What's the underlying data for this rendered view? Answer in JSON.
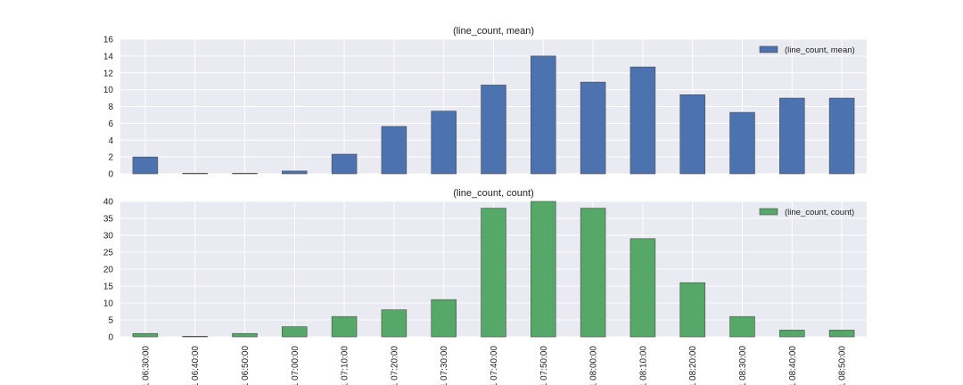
{
  "chart_data": [
    {
      "type": "bar",
      "title": "(line_count, mean)",
      "categories": [
        "1 06:30:00",
        "1 06:40:00",
        "1 06:50:00",
        "1 07:00:00",
        "1 07:10:00",
        "1 07:20:00",
        "1 07:30:00",
        "1 07:40:00",
        "1 07:50:00",
        "1 08:00:00",
        "1 08:10:00",
        "1 08:20:00",
        "1 08:30:00",
        "1 08:40:00",
        "1 08:50:00"
      ],
      "series": [
        {
          "name": "(line_count, mean)",
          "color": "#4c72b0",
          "values": [
            2.0,
            0.0,
            0.0,
            0.33,
            2.33,
            5.63,
            7.45,
            10.55,
            14.0,
            10.9,
            12.7,
            9.4,
            7.3,
            9.0,
            9.0
          ]
        }
      ],
      "ylim": [
        0,
        16
      ],
      "yticks": [
        0,
        2,
        4,
        6,
        8,
        10,
        12,
        14,
        16
      ],
      "grid": true,
      "legend_position": "top-right",
      "xlabel": "",
      "ylabel": ""
    },
    {
      "type": "bar",
      "title": "(line_count, count)",
      "categories": [
        "1 06:30:00",
        "1 06:40:00",
        "1 06:50:00",
        "1 07:00:00",
        "1 07:10:00",
        "1 07:20:00",
        "1 07:30:00",
        "1 07:40:00",
        "1 07:50:00",
        "1 08:00:00",
        "1 08:10:00",
        "1 08:20:00",
        "1 08:30:00",
        "1 08:40:00",
        "1 08:50:00"
      ],
      "series": [
        {
          "name": "(line_count, count)",
          "color": "#55a868",
          "values": [
            1,
            0,
            1,
            3,
            6,
            8,
            11,
            38,
            40,
            38,
            29,
            16,
            6,
            2,
            2
          ]
        }
      ],
      "ylim": [
        0,
        40
      ],
      "yticks": [
        0,
        5,
        10,
        15,
        20,
        25,
        30,
        35,
        40
      ],
      "grid": true,
      "legend_position": "top-right",
      "xlabel": "",
      "ylabel": ""
    }
  ],
  "style": {
    "plot_background": "#eaeaf2",
    "grid_color": "#ffffff",
    "bar_edge": "#4a4a4a"
  }
}
